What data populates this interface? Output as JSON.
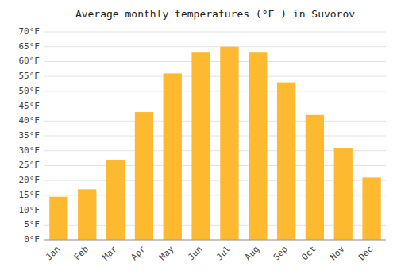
{
  "chart_data": {
    "type": "bar",
    "title": "Average monthly temperatures (°F ) in Suvorov",
    "categories": [
      "Jan",
      "Feb",
      "Mar",
      "Apr",
      "May",
      "Jun",
      "Jul",
      "Aug",
      "Sep",
      "Oct",
      "Nov",
      "Dec"
    ],
    "values": [
      14.5,
      17.0,
      27.0,
      43.0,
      56.0,
      63.0,
      65.0,
      63.0,
      53.0,
      42.0,
      31.0,
      21.0
    ],
    "color": "#FDB930",
    "ylim": [
      0,
      70
    ],
    "yticks": [
      {
        "value": 0,
        "label": "0°F"
      },
      {
        "value": 5,
        "label": "5°F"
      },
      {
        "value": 10,
        "label": "10°F"
      },
      {
        "value": 15,
        "label": "15°F"
      },
      {
        "value": 20,
        "label": "20°F"
      },
      {
        "value": 25,
        "label": "25°F"
      },
      {
        "value": 30,
        "label": "30°F"
      },
      {
        "value": 35,
        "label": "35°F"
      },
      {
        "value": 40,
        "label": "40°F"
      },
      {
        "value": 45,
        "label": "45°F"
      },
      {
        "value": 50,
        "label": "50°F"
      },
      {
        "value": 55,
        "label": "55°F"
      },
      {
        "value": 60,
        "label": "60°F"
      },
      {
        "value": 65,
        "label": "65°F"
      },
      {
        "value": 70,
        "label": "70°F"
      }
    ],
    "grid": true
  }
}
